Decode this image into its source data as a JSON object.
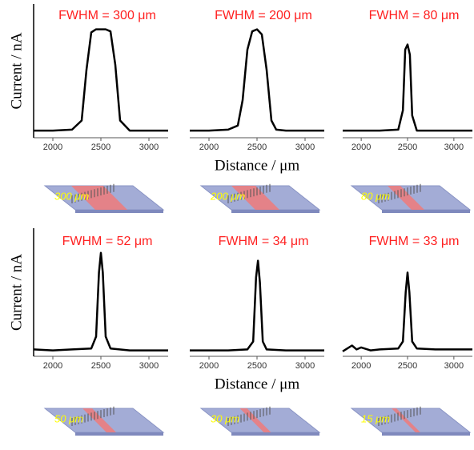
{
  "chart_data": [
    {
      "type": "line",
      "title": "FWHM = 300 μm",
      "y_label": "Current / nA",
      "annotation": "300 μm",
      "xlim": [
        1800,
        3200
      ],
      "xticks": [
        2000,
        2500,
        3000
      ],
      "ylim": [
        -0.07,
        1.25
      ],
      "series": [
        {
          "color": "#000000",
          "x": [
            1800,
            2000,
            2200,
            2300,
            2350,
            2400,
            2450,
            2500,
            2550,
            2600,
            2650,
            2700,
            2800,
            3000,
            3200
          ],
          "values": [
            0,
            0,
            0.01,
            0.1,
            0.6,
            0.97,
            1.0,
            1.0,
            1.0,
            0.98,
            0.65,
            0.1,
            0,
            0,
            0
          ]
        }
      ]
    },
    {
      "type": "line",
      "title": "FWHM = 200 μm",
      "x_label": "Distance / μm",
      "annotation": "200 μm",
      "xlim": [
        1800,
        3200
      ],
      "xticks": [
        2000,
        2500,
        3000
      ],
      "ylim": [
        -0.07,
        1.25
      ],
      "series": [
        {
          "color": "#000000",
          "x": [
            1800,
            2000,
            2200,
            2300,
            2350,
            2400,
            2450,
            2500,
            2550,
            2600,
            2650,
            2700,
            2800,
            3200
          ],
          "values": [
            0,
            0,
            0.01,
            0.05,
            0.3,
            0.8,
            0.98,
            1.0,
            0.95,
            0.6,
            0.1,
            0.01,
            0,
            0
          ]
        }
      ]
    },
    {
      "type": "line",
      "title": "FWHM = 80 μm",
      "annotation": "80 μm",
      "xlim": [
        1800,
        3200
      ],
      "xticks": [
        2000,
        2500,
        3000
      ],
      "ylim": [
        -0.07,
        1.25
      ],
      "series": [
        {
          "color": "#000000",
          "x": [
            1800,
            2200,
            2400,
            2450,
            2475,
            2500,
            2525,
            2550,
            2600,
            3200
          ],
          "values": [
            0,
            0,
            0.01,
            0.2,
            0.8,
            0.85,
            0.75,
            0.15,
            0,
            0
          ]
        }
      ]
    },
    {
      "type": "line",
      "title": "FWHM = 52 μm",
      "y_label": "Current / nA",
      "annotation": "50 μm",
      "xlim": [
        1800,
        3200
      ],
      "xticks": [
        2000,
        2500,
        3000
      ],
      "ylim": [
        -0.05,
        1.25
      ],
      "series": [
        {
          "color": "#000000",
          "x": [
            1800,
            2000,
            2200,
            2400,
            2450,
            2480,
            2500,
            2520,
            2550,
            2600,
            2800,
            3000,
            3200
          ],
          "values": [
            0.02,
            0.01,
            0.02,
            0.03,
            0.15,
            0.8,
            1.0,
            0.8,
            0.15,
            0.03,
            0.01,
            0.01,
            0.01
          ]
        }
      ]
    },
    {
      "type": "line",
      "title": "FWHM = 34 μm",
      "x_label": "Distance / μm",
      "annotation": "30 μm",
      "xlim": [
        1800,
        3200
      ],
      "xticks": [
        2000,
        2500,
        3000
      ],
      "ylim": [
        -0.05,
        1.25
      ],
      "series": [
        {
          "color": "#000000",
          "x": [
            1800,
            2000,
            2200,
            2400,
            2460,
            2490,
            2510,
            2530,
            2560,
            2600,
            2800,
            3000,
            3200
          ],
          "values": [
            0.01,
            0.01,
            0.01,
            0.02,
            0.1,
            0.75,
            0.92,
            0.7,
            0.1,
            0.02,
            0.01,
            0.01,
            0.01
          ]
        }
      ]
    },
    {
      "type": "line",
      "title": "FWHM = 33 μm",
      "annotation": "15 μm",
      "xlim": [
        1800,
        3200
      ],
      "xticks": [
        2000,
        2500,
        3000
      ],
      "ylim": [
        -0.05,
        1.25
      ],
      "series": [
        {
          "color": "#000000",
          "x": [
            1800,
            1850,
            1900,
            1950,
            2000,
            2100,
            2200,
            2400,
            2450,
            2480,
            2500,
            2520,
            2550,
            2600,
            2800,
            3000,
            3200
          ],
          "values": [
            0.0,
            0.03,
            0.06,
            0.02,
            0.04,
            0.01,
            0.02,
            0.03,
            0.1,
            0.6,
            0.8,
            0.6,
            0.1,
            0.03,
            0.02,
            0.02,
            0.02
          ]
        }
      ]
    }
  ]
}
